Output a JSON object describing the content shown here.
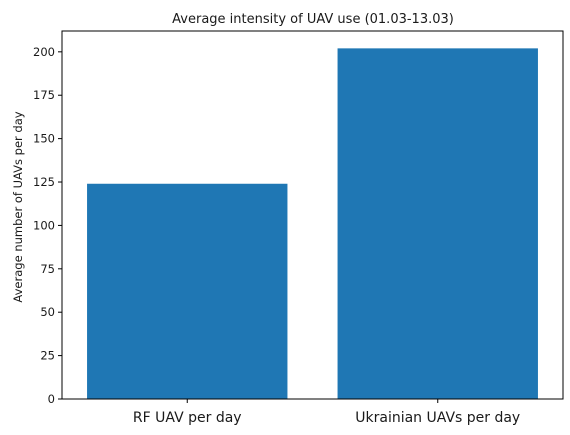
{
  "chart_data": {
    "type": "bar",
    "title": "Average intensity of UAV use (01.03-13.03)",
    "xlabel": "",
    "ylabel": "Average number of UAVs per day",
    "categories": [
      "RF UAV per day",
      "Ukrainian UAVs per day"
    ],
    "values": [
      124,
      202
    ],
    "ylim": [
      0,
      212
    ],
    "yticks": [
      0,
      25,
      50,
      75,
      100,
      125,
      150,
      175,
      200
    ],
    "grid": false,
    "bar_color": "#1f77b4"
  }
}
